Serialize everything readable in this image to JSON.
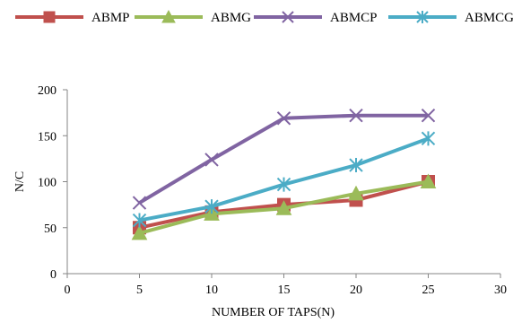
{
  "chart_data": {
    "type": "line",
    "xlabel": "NUMBER OF TAPS(N)",
    "ylabel": "N/C",
    "xlim": [
      0,
      30
    ],
    "ylim": [
      0,
      200
    ],
    "xticks": [
      "0",
      "5",
      "10",
      "15",
      "20",
      "25",
      "30"
    ],
    "yticks": [
      "0",
      "50",
      "100",
      "150",
      "200"
    ],
    "grid": false,
    "legend_position": "top",
    "x": [
      5,
      10,
      15,
      20,
      25
    ],
    "series": [
      {
        "name": "ABMP",
        "values": [
          50,
          67,
          75,
          80,
          100
        ],
        "color": "#c0504d",
        "marker": "square"
      },
      {
        "name": "ABMG",
        "values": [
          44,
          65,
          71,
          87,
          100
        ],
        "color": "#9bbb59",
        "marker": "triangle"
      },
      {
        "name": "ABMCP",
        "values": [
          77,
          124,
          169,
          172,
          172
        ],
        "color": "#8064a2",
        "marker": "x"
      },
      {
        "name": "ABMCG",
        "values": [
          58,
          73,
          97,
          118,
          147
        ],
        "color": "#4bacc6",
        "marker": "star"
      }
    ]
  }
}
